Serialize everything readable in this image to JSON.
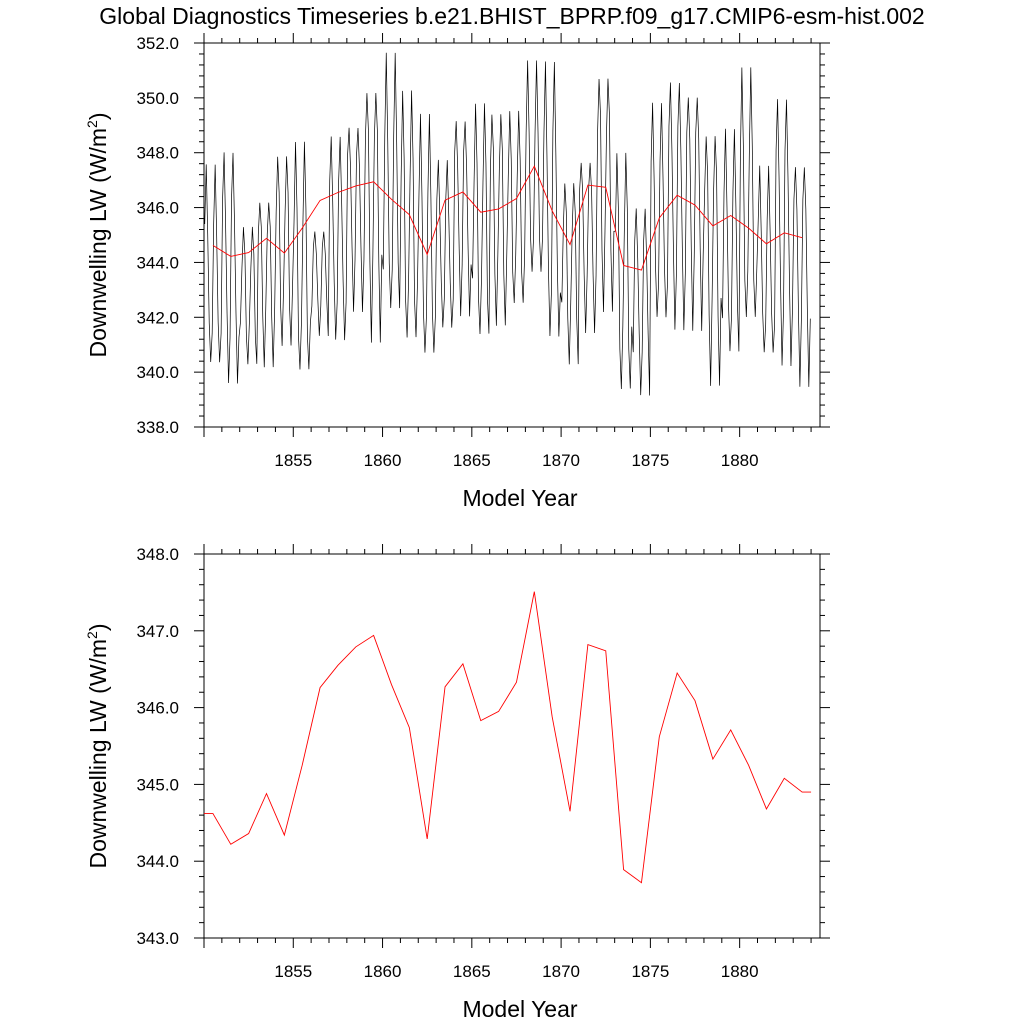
{
  "title": "Global Diagnostics Timeseries b.e21.BHIST_BPRP.f09_g17.CMIP6-esm-hist.002",
  "colors": {
    "monthly": "#000000",
    "annual": "#ff0000",
    "axis": "#000000"
  },
  "chart_data": [
    {
      "type": "line",
      "name": "monthly-and-annual",
      "xlabel": "Model Year",
      "ylabel_main": "Downwelling LW (W/m",
      "ylabel_sup": "2",
      "ylabel_close": ")",
      "xlim": [
        1850.0,
        1884.5
      ],
      "ylim": [
        338.0,
        352.0
      ],
      "xticks": [
        1855,
        1860,
        1865,
        1870,
        1875,
        1880
      ],
      "xtick_labels": [
        "1855",
        "1860",
        "1865",
        "1870",
        "1875",
        "1880"
      ],
      "yticks": [
        338,
        340,
        342,
        344,
        346,
        348,
        350,
        352
      ],
      "ytick_labels": [
        "338.0",
        "340.0",
        "342.0",
        "344.0",
        "346.0",
        "348.0",
        "350.0",
        "352.0"
      ],
      "series": [
        {
          "name": "monthly",
          "color": "#000000",
          "x_start": 1850.0417,
          "x_step": 0.08333,
          "annual_min": [
            340.0,
            339.6,
            340.3,
            340.5,
            341.0,
            339.7,
            341.5,
            341.1,
            342.5,
            341.6,
            341.8,
            340.9,
            340.2,
            341.5,
            342.3,
            341.1,
            341.9,
            342.3,
            343.2,
            341.0,
            340.5,
            341.8,
            342.5,
            339.2,
            339.3,
            341.7,
            341.7,
            342.0,
            339.9,
            340.4,
            341.5,
            340.4,
            340.3,
            339.9
          ],
          "annual_max": [
            347.2,
            348.0,
            345.3,
            346.5,
            347.9,
            348.0,
            345.3,
            348.5,
            349.2,
            350.7,
            351.1,
            349.9,
            348.9,
            347.6,
            349.4,
            349.5,
            349.6,
            349.3,
            350.9,
            351.0,
            347.1,
            348.0,
            351.0,
            347.8,
            346.1,
            349.5,
            350.7,
            350.5,
            349.0,
            348.5,
            350.6,
            347.2,
            350.0,
            347.9
          ],
          "phase_shift": [
            0,
            0,
            1,
            0,
            0,
            0,
            1,
            0,
            0,
            0,
            1,
            0,
            0,
            0,
            0,
            1,
            0,
            0,
            0,
            0,
            1,
            0,
            0,
            0,
            1,
            0,
            0,
            0,
            0,
            1,
            0,
            0,
            0,
            0
          ]
        },
        {
          "name": "annual",
          "color": "#ff0000",
          "x": [
            1850.5,
            1851.5,
            1852.5,
            1853.5,
            1854.5,
            1855.5,
            1856.5,
            1857.5,
            1858.5,
            1859.5,
            1860.5,
            1861.5,
            1862.5,
            1863.5,
            1864.5,
            1865.5,
            1866.5,
            1867.5,
            1868.5,
            1869.5,
            1870.5,
            1871.5,
            1872.5,
            1873.5,
            1874.5,
            1875.5,
            1876.5,
            1877.5,
            1878.5,
            1879.5,
            1880.5,
            1881.5,
            1882.5,
            1883.5
          ],
          "values": [
            344.62,
            344.22,
            344.36,
            344.88,
            344.34,
            345.25,
            346.26,
            346.55,
            346.79,
            346.94,
            346.3,
            345.74,
            344.29,
            346.27,
            346.57,
            345.83,
            345.95,
            346.33,
            347.51,
            345.88,
            344.65,
            346.82,
            346.74,
            343.89,
            343.72,
            345.62,
            346.45,
            346.09,
            345.33,
            345.71,
            345.25,
            344.68,
            345.08,
            344.9
          ]
        }
      ]
    },
    {
      "type": "line",
      "name": "annual-only",
      "xlabel": "Model Year",
      "ylabel_main": "Downwelling LW (W/m",
      "ylabel_sup": "2",
      "ylabel_close": ")",
      "xlim": [
        1850.0,
        1884.5
      ],
      "ylim": [
        343.0,
        348.0
      ],
      "xticks": [
        1855,
        1860,
        1865,
        1870,
        1875,
        1880
      ],
      "xtick_labels": [
        "1855",
        "1860",
        "1865",
        "1870",
        "1875",
        "1880"
      ],
      "yticks": [
        343,
        344,
        345,
        346,
        347,
        348
      ],
      "ytick_labels": [
        "343.0",
        "344.0",
        "345.0",
        "346.0",
        "347.0",
        "348.0"
      ],
      "series": [
        {
          "name": "annual",
          "color": "#ff0000",
          "x": [
            1850.0,
            1850.5,
            1851.5,
            1852.5,
            1853.5,
            1854.5,
            1855.5,
            1856.5,
            1857.5,
            1858.5,
            1859.5,
            1860.5,
            1861.5,
            1862.5,
            1863.5,
            1864.5,
            1865.5,
            1866.5,
            1867.5,
            1868.5,
            1869.5,
            1870.5,
            1871.5,
            1872.5,
            1873.5,
            1874.5,
            1875.5,
            1876.5,
            1877.5,
            1878.5,
            1879.5,
            1880.5,
            1881.5,
            1882.5,
            1883.5,
            1884.0
          ],
          "values": [
            344.62,
            344.62,
            344.22,
            344.36,
            344.88,
            344.34,
            345.25,
            346.26,
            346.55,
            346.79,
            346.94,
            346.3,
            345.74,
            344.29,
            346.27,
            346.57,
            345.83,
            345.95,
            346.33,
            347.51,
            345.88,
            344.65,
            346.82,
            346.74,
            343.89,
            343.72,
            345.62,
            346.45,
            346.09,
            345.33,
            345.71,
            345.25,
            344.68,
            345.08,
            344.9,
            344.9
          ]
        }
      ]
    }
  ]
}
